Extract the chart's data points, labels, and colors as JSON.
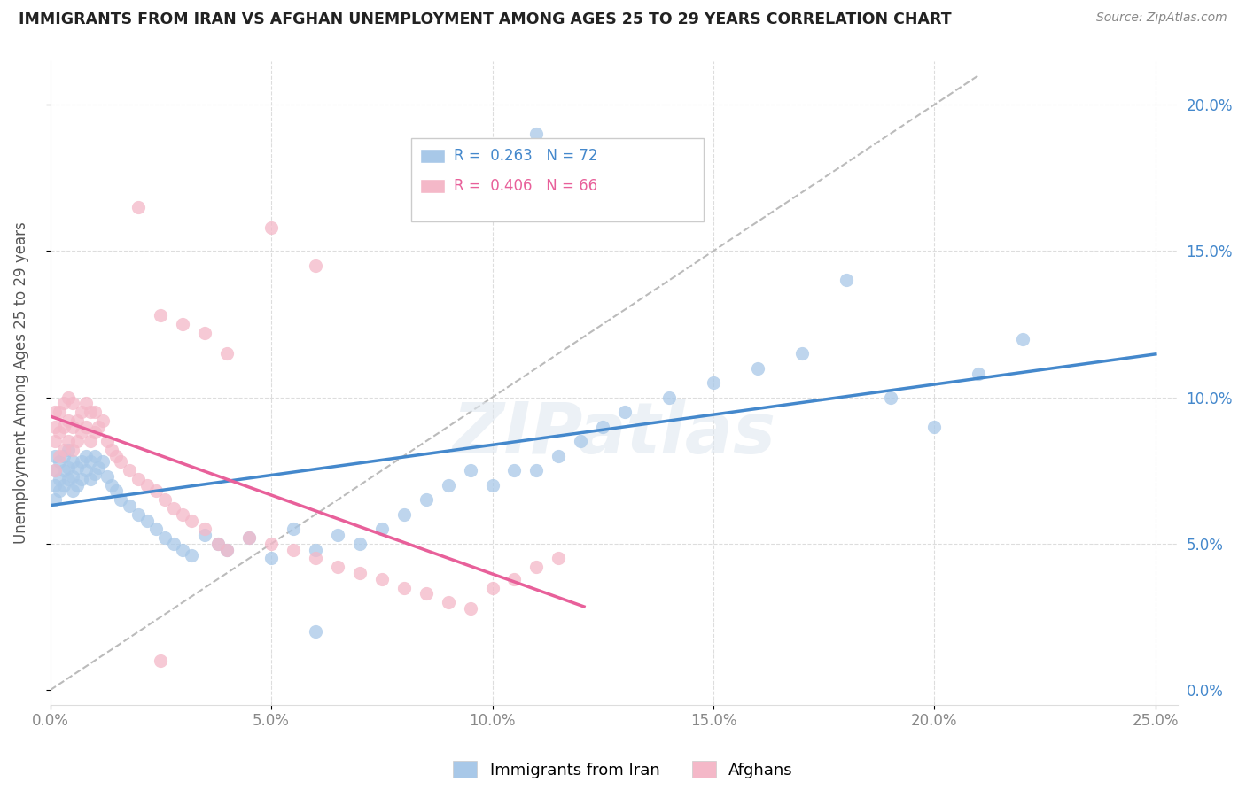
{
  "title": "IMMIGRANTS FROM IRAN VS AFGHAN UNEMPLOYMENT AMONG AGES 25 TO 29 YEARS CORRELATION CHART",
  "source": "Source: ZipAtlas.com",
  "iran_R": "0.263",
  "iran_N": "72",
  "afghan_R": "0.406",
  "afghan_N": "66",
  "iran_color": "#a8c8e8",
  "afghan_color": "#f4b8c8",
  "iran_line_color": "#4488cc",
  "afghan_line_color": "#e8609a",
  "diagonal_color": "#bbbbbb",
  "watermark_text": "ZIPatlas",
  "xlim": [
    0,
    0.255
  ],
  "ylim": [
    -0.005,
    0.215
  ],
  "x_ticks": [
    0.0,
    0.05,
    0.1,
    0.15,
    0.2,
    0.25
  ],
  "x_tick_labels": [
    "0.0%",
    "5.0%",
    "10.0%",
    "15.0%",
    "20.0%",
    "25.0%"
  ],
  "y_ticks": [
    0.0,
    0.05,
    0.1,
    0.15,
    0.2
  ],
  "y_tick_labels": [
    "0.0%",
    "5.0%",
    "10.0%",
    "15.0%",
    "20.0%"
  ],
  "ylabel": "Unemployment Among Ages 25 to 29 years",
  "iran_x": [
    0.001,
    0.001,
    0.001,
    0.001,
    0.002,
    0.002,
    0.002,
    0.003,
    0.003,
    0.003,
    0.004,
    0.004,
    0.004,
    0.005,
    0.005,
    0.005,
    0.006,
    0.006,
    0.007,
    0.007,
    0.008,
    0.008,
    0.009,
    0.009,
    0.01,
    0.01,
    0.011,
    0.012,
    0.013,
    0.014,
    0.015,
    0.016,
    0.018,
    0.02,
    0.022,
    0.024,
    0.026,
    0.028,
    0.03,
    0.032,
    0.035,
    0.038,
    0.04,
    0.045,
    0.05,
    0.055,
    0.06,
    0.065,
    0.07,
    0.075,
    0.08,
    0.085,
    0.09,
    0.095,
    0.1,
    0.105,
    0.11,
    0.115,
    0.12,
    0.125,
    0.13,
    0.14,
    0.15,
    0.16,
    0.17,
    0.18,
    0.19,
    0.2,
    0.21,
    0.22,
    0.11,
    0.06
  ],
  "iran_y": [
    0.065,
    0.07,
    0.075,
    0.08,
    0.068,
    0.072,
    0.078,
    0.07,
    0.075,
    0.08,
    0.072,
    0.076,
    0.082,
    0.068,
    0.073,
    0.078,
    0.07,
    0.076,
    0.072,
    0.078,
    0.075,
    0.08,
    0.072,
    0.078,
    0.074,
    0.08,
    0.076,
    0.078,
    0.073,
    0.07,
    0.068,
    0.065,
    0.063,
    0.06,
    0.058,
    0.055,
    0.052,
    0.05,
    0.048,
    0.046,
    0.053,
    0.05,
    0.048,
    0.052,
    0.045,
    0.055,
    0.048,
    0.053,
    0.05,
    0.055,
    0.06,
    0.065,
    0.07,
    0.075,
    0.07,
    0.075,
    0.075,
    0.08,
    0.085,
    0.09,
    0.095,
    0.1,
    0.105,
    0.11,
    0.115,
    0.14,
    0.1,
    0.09,
    0.108,
    0.12,
    0.19,
    0.02
  ],
  "afghan_x": [
    0.001,
    0.001,
    0.001,
    0.001,
    0.002,
    0.002,
    0.002,
    0.003,
    0.003,
    0.003,
    0.004,
    0.004,
    0.004,
    0.005,
    0.005,
    0.005,
    0.006,
    0.006,
    0.007,
    0.007,
    0.008,
    0.008,
    0.009,
    0.009,
    0.01,
    0.01,
    0.011,
    0.012,
    0.013,
    0.014,
    0.015,
    0.016,
    0.018,
    0.02,
    0.022,
    0.024,
    0.026,
    0.028,
    0.03,
    0.032,
    0.035,
    0.038,
    0.04,
    0.045,
    0.05,
    0.055,
    0.06,
    0.065,
    0.07,
    0.075,
    0.08,
    0.085,
    0.09,
    0.095,
    0.1,
    0.105,
    0.11,
    0.115,
    0.05,
    0.06,
    0.025,
    0.03,
    0.035,
    0.04,
    0.02,
    0.025
  ],
  "afghan_y": [
    0.075,
    0.085,
    0.09,
    0.095,
    0.08,
    0.088,
    0.095,
    0.082,
    0.09,
    0.098,
    0.085,
    0.092,
    0.1,
    0.082,
    0.09,
    0.098,
    0.085,
    0.092,
    0.088,
    0.095,
    0.09,
    0.098,
    0.085,
    0.095,
    0.088,
    0.095,
    0.09,
    0.092,
    0.085,
    0.082,
    0.08,
    0.078,
    0.075,
    0.072,
    0.07,
    0.068,
    0.065,
    0.062,
    0.06,
    0.058,
    0.055,
    0.05,
    0.048,
    0.052,
    0.05,
    0.048,
    0.045,
    0.042,
    0.04,
    0.038,
    0.035,
    0.033,
    0.03,
    0.028,
    0.035,
    0.038,
    0.042,
    0.045,
    0.158,
    0.145,
    0.128,
    0.125,
    0.122,
    0.115,
    0.165,
    0.01
  ]
}
